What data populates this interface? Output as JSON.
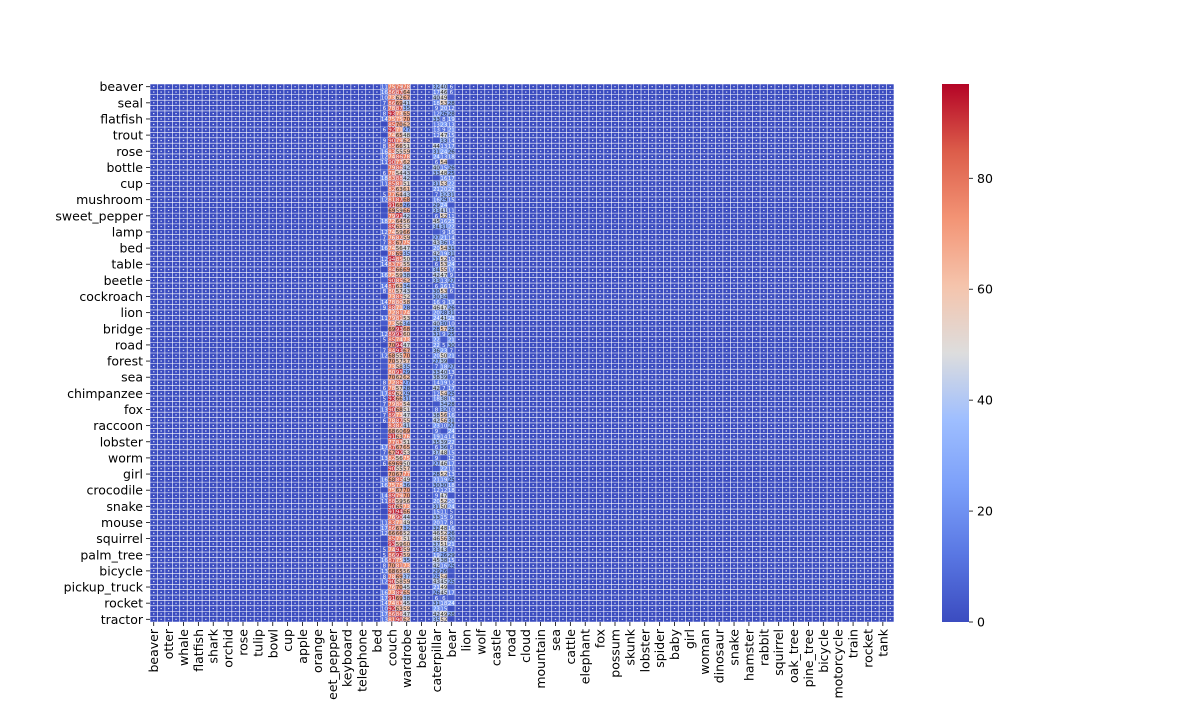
{
  "chart_data": {
    "type": "heatmap",
    "title": "",
    "xlabel": "",
    "ylabel": "",
    "grid_size": 100,
    "x_tick_labels": [
      "beaver",
      "otter",
      "whale",
      "flatfish",
      "shark",
      "orchid",
      "rose",
      "tulip",
      "bowl",
      "cup",
      "apple",
      "orange",
      "sweet_pepper",
      "keyboard",
      "telephone",
      "bed",
      "couch",
      "wardrobe",
      "beetle",
      "caterpillar",
      "bear",
      "lion",
      "wolf",
      "castle",
      "road",
      "cloud",
      "mountain",
      "sea",
      "cattle",
      "elephant",
      "fox",
      "possum",
      "skunk",
      "lobster",
      "spider",
      "baby",
      "girl",
      "woman",
      "dinosaur",
      "snake",
      "hamster",
      "rabbit",
      "squirrel",
      "oak_tree",
      "pine_tree",
      "bicycle",
      "motorcycle",
      "train",
      "rocket",
      "tank"
    ],
    "y_tick_labels": [
      "beaver",
      "seal",
      "flatfish",
      "trout",
      "rose",
      "bottle",
      "cup",
      "mushroom",
      "sweet_pepper",
      "lamp",
      "bed",
      "table",
      "beetle",
      "cockroach",
      "lion",
      "bridge",
      "road",
      "forest",
      "sea",
      "chimpanzee",
      "fox",
      "raccoon",
      "lobster",
      "worm",
      "girl",
      "crocodile",
      "snake",
      "mouse",
      "squirrel",
      "palm_tree",
      "bicycle",
      "pickup_truck",
      "rocket",
      "tractor"
    ],
    "highlight_columns": [
      {
        "col": 32,
        "mean": 80,
        "spread": 14
      },
      {
        "col": 33,
        "mean": 74,
        "spread": 20
      },
      {
        "col": 34,
        "mean": 52,
        "spread": 26
      },
      {
        "col": 38,
        "mean": 24,
        "spread": 22
      },
      {
        "col": 39,
        "mean": 30,
        "spread": 28
      },
      {
        "col": 40,
        "mean": 16,
        "spread": 16
      },
      {
        "col": 31,
        "mean": 8,
        "spread": 10
      }
    ],
    "background_value": 0,
    "colorbar": {
      "label": "",
      "min": 0,
      "max": 97,
      "ticks": [
        0,
        20,
        40,
        60,
        80
      ],
      "colormap": "coolwarm"
    },
    "cell_annotations": "value printed in each cell",
    "colors": {
      "low": "#3b4cc0",
      "mid": "#dddddd",
      "high": "#b40426",
      "cell_border": "#ffffff"
    }
  }
}
